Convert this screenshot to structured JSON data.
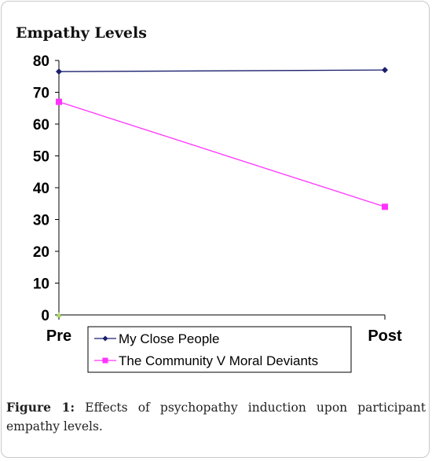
{
  "caption": {
    "label": "Figure 1:",
    "text": "Effects of psychopathy induction upon participant empathy levels."
  },
  "chart_data": {
    "type": "line",
    "title": "Empathy Levels",
    "categories": [
      "Pre",
      "Post"
    ],
    "xlabel": "",
    "ylabel": "",
    "ylim": [
      0,
      80
    ],
    "yticks": [
      0,
      10,
      20,
      30,
      40,
      50,
      60,
      70,
      80
    ],
    "grid": false,
    "legend_position": "bottom-center",
    "series": [
      {
        "name": "My Close People",
        "values": [
          76.5,
          77
        ],
        "color": "#1a1f6e",
        "marker": "diamond"
      },
      {
        "name": "The Community V Moral Deviants",
        "values": [
          67,
          34
        ],
        "color": "#ff33ff",
        "marker": "square"
      }
    ],
    "extra_points": [
      {
        "category": "Pre",
        "value": 0,
        "color": "#a8e060",
        "marker": "triangle"
      }
    ]
  }
}
